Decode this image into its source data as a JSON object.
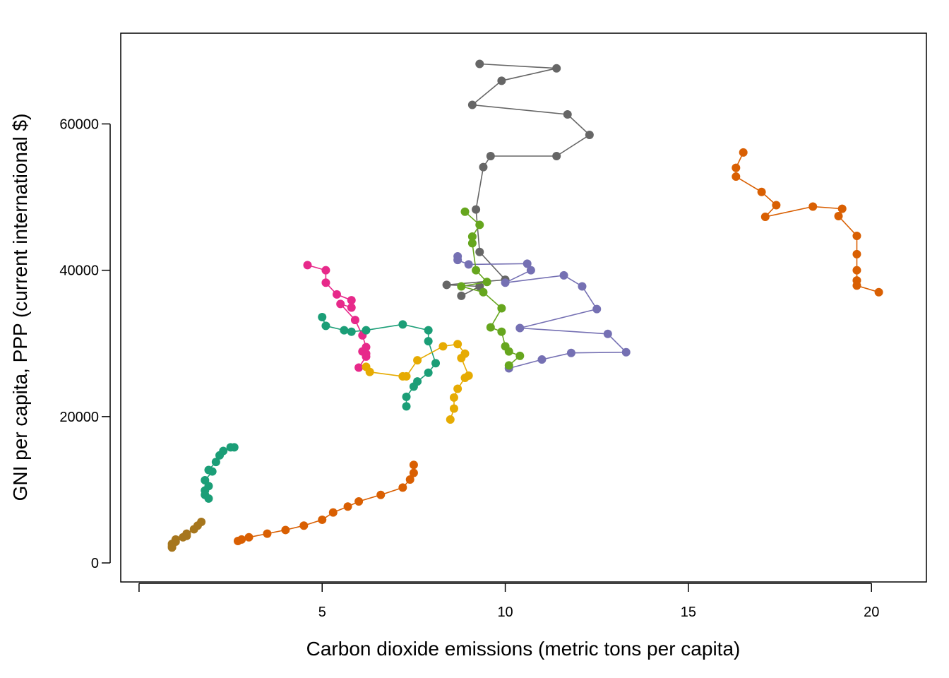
{
  "chart_data": {
    "type": "line",
    "title": "",
    "xlabel": "Carbon dioxide emissions (metric tons per capita)",
    "ylabel": "GNI per capita, PPP (current international $)",
    "xlim": [
      -0.5,
      21.5
    ],
    "ylim": [
      -2600,
      72400
    ],
    "x_ticks": [
      0,
      5,
      10,
      15,
      20
    ],
    "x_tick_labels": [
      "",
      "5",
      "10",
      "15",
      "20"
    ],
    "y_ticks": [
      0,
      20000,
      40000,
      60000
    ],
    "y_tick_labels": [
      "0",
      "20000",
      "40000",
      "60000"
    ],
    "grid": false,
    "legend": "none",
    "series": [
      {
        "color": "#D95F02",
        "points": [
          [
            16.5,
            56100
          ],
          [
            16.3,
            54000
          ],
          [
            16.3,
            52800
          ],
          [
            17.0,
            50700
          ],
          [
            17.4,
            48900
          ],
          [
            17.1,
            47300
          ],
          [
            18.4,
            48700
          ],
          [
            19.2,
            48400
          ],
          [
            19.1,
            47400
          ],
          [
            19.6,
            44700
          ],
          [
            19.6,
            42200
          ],
          [
            19.6,
            40000
          ],
          [
            19.6,
            38600
          ],
          [
            19.6,
            37900
          ],
          [
            20.2,
            37000
          ]
        ]
      },
      {
        "color": "#D95F02",
        "points": [
          [
            2.7,
            3000
          ],
          [
            2.8,
            3200
          ],
          [
            3.0,
            3500
          ],
          [
            3.5,
            4000
          ],
          [
            4.0,
            4500
          ],
          [
            4.5,
            5100
          ],
          [
            5.0,
            5900
          ],
          [
            5.3,
            6900
          ],
          [
            5.7,
            7700
          ],
          [
            6.0,
            8400
          ],
          [
            6.6,
            9300
          ],
          [
            7.2,
            10300
          ],
          [
            7.4,
            11400
          ],
          [
            7.5,
            12300
          ],
          [
            7.5,
            13400
          ]
        ]
      },
      {
        "color": "#666666",
        "points": [
          [
            9.3,
            68200
          ],
          [
            11.4,
            67600
          ],
          [
            9.9,
            65900
          ],
          [
            9.1,
            62600
          ],
          [
            11.7,
            61300
          ],
          [
            12.3,
            58500
          ],
          [
            11.4,
            55600
          ],
          [
            9.6,
            55600
          ],
          [
            9.4,
            54100
          ],
          [
            9.2,
            48300
          ],
          [
            9.3,
            42500
          ],
          [
            10.0,
            38700
          ],
          [
            8.4,
            38000
          ],
          [
            9.3,
            37800
          ],
          [
            8.8,
            36500
          ]
        ]
      },
      {
        "color": "#7570B3",
        "points": [
          [
            8.7,
            41900
          ],
          [
            8.7,
            41400
          ],
          [
            9.0,
            40800
          ],
          [
            10.6,
            40900
          ],
          [
            10.7,
            40000
          ],
          [
            10.0,
            38300
          ],
          [
            11.6,
            39300
          ],
          [
            12.1,
            37800
          ],
          [
            12.5,
            34700
          ],
          [
            10.4,
            32100
          ],
          [
            12.8,
            31300
          ],
          [
            13.3,
            28800
          ],
          [
            11.8,
            28700
          ],
          [
            11.0,
            27800
          ],
          [
            10.1,
            26600
          ]
        ]
      },
      {
        "color": "#66A61E",
        "points": [
          [
            8.9,
            48000
          ],
          [
            9.3,
            46200
          ],
          [
            9.1,
            44600
          ],
          [
            9.1,
            43700
          ],
          [
            9.2,
            40000
          ],
          [
            9.5,
            38400
          ],
          [
            8.8,
            37800
          ],
          [
            9.4,
            37000
          ],
          [
            9.9,
            34800
          ],
          [
            9.6,
            32200
          ],
          [
            9.9,
            31600
          ],
          [
            10.0,
            29600
          ],
          [
            10.1,
            28900
          ],
          [
            10.4,
            28300
          ],
          [
            10.1,
            27000
          ]
        ]
      },
      {
        "color": "#E7298A",
        "points": [
          [
            4.6,
            40700
          ],
          [
            5.1,
            40000
          ],
          [
            5.1,
            38300
          ],
          [
            5.4,
            36700
          ],
          [
            5.8,
            35900
          ],
          [
            5.8,
            34900
          ],
          [
            5.5,
            35400
          ],
          [
            5.9,
            33200
          ],
          [
            6.1,
            31100
          ],
          [
            6.2,
            29500
          ],
          [
            6.1,
            28900
          ],
          [
            6.2,
            28600
          ],
          [
            6.2,
            28200
          ],
          [
            6.0,
            26700
          ]
        ]
      },
      {
        "color": "#1B9E77",
        "points": [
          [
            5.0,
            33600
          ],
          [
            5.1,
            32400
          ],
          [
            5.6,
            31800
          ],
          [
            5.8,
            31600
          ],
          [
            6.2,
            31800
          ],
          [
            7.2,
            32600
          ],
          [
            7.9,
            31800
          ],
          [
            7.9,
            30300
          ],
          [
            8.1,
            27300
          ],
          [
            7.9,
            26000
          ],
          [
            7.6,
            24800
          ],
          [
            7.5,
            24100
          ],
          [
            7.3,
            22700
          ],
          [
            7.3,
            21400
          ]
        ]
      },
      {
        "color": "#E6AB02",
        "points": [
          [
            6.2,
            26800
          ],
          [
            6.3,
            26100
          ],
          [
            7.2,
            25500
          ],
          [
            7.3,
            25500
          ],
          [
            7.6,
            27700
          ],
          [
            8.3,
            29600
          ],
          [
            8.7,
            29900
          ],
          [
            8.9,
            28600
          ],
          [
            8.8,
            28000
          ],
          [
            9.0,
            25600
          ],
          [
            8.9,
            25300
          ],
          [
            8.7,
            23800
          ],
          [
            8.6,
            22600
          ],
          [
            8.6,
            21100
          ],
          [
            8.5,
            19600
          ]
        ]
      },
      {
        "color": "#1B9E77",
        "points": [
          [
            2.6,
            15800
          ],
          [
            2.5,
            15800
          ],
          [
            2.3,
            15300
          ],
          [
            2.2,
            14700
          ],
          [
            2.1,
            13800
          ],
          [
            1.9,
            12700
          ],
          [
            2.0,
            12500
          ],
          [
            1.8,
            11300
          ],
          [
            1.9,
            10500
          ],
          [
            1.8,
            9900
          ],
          [
            1.8,
            9300
          ],
          [
            1.9,
            8800
          ]
        ]
      },
      {
        "color": "#A6761D",
        "points": [
          [
            1.7,
            5600
          ],
          [
            1.6,
            5100
          ],
          [
            1.5,
            4600
          ],
          [
            1.3,
            4000
          ],
          [
            1.3,
            3700
          ],
          [
            1.2,
            3500
          ],
          [
            1.0,
            3200
          ],
          [
            1.0,
            2900
          ],
          [
            0.9,
            2600
          ],
          [
            0.9,
            2300
          ],
          [
            0.9,
            2100
          ]
        ]
      }
    ]
  }
}
